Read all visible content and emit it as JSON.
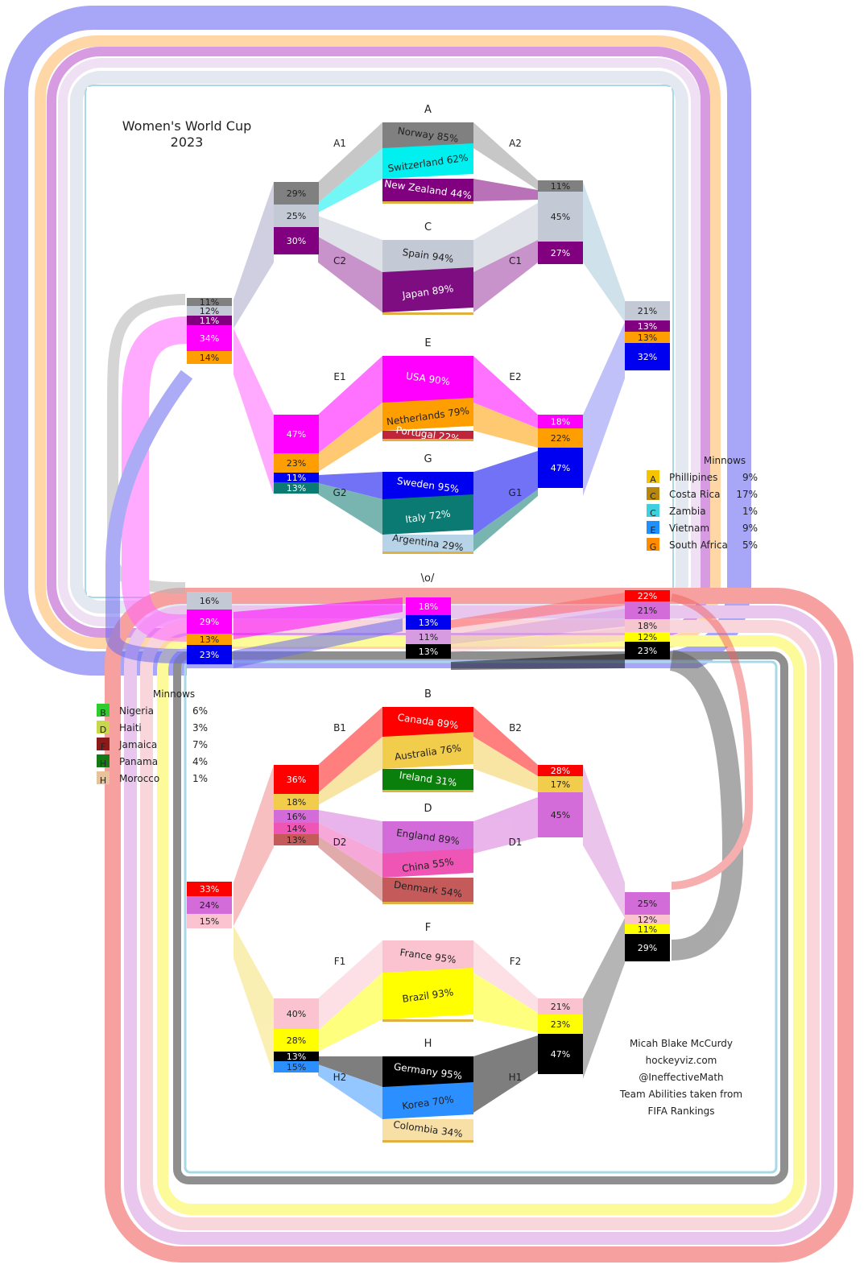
{
  "title_line1": "Women's World Cup",
  "title_line2": "2023",
  "center_label": "\\o/",
  "colors": {
    "ring_outer": "#a8a6f7",
    "ring_peach": "#ffd7a6",
    "ring_violet": "#d79be1",
    "ring_lilac": "#e9d2ef",
    "ring_pale": "#e4e8f0",
    "ring_line": "#a9d8e6",
    "ring_red": "#f7a0a0",
    "ring_pink": "#f6c6cf",
    "ring_yellow": "#fdfa9a",
    "ring_grey": "#8f8f8f"
  },
  "upper": {
    "groups": [
      {
        "key": "A",
        "label": "A",
        "side1": "A1",
        "side2": "A2",
        "teams": [
          {
            "name": "Norway 85%",
            "color": "#808080"
          },
          {
            "name": "Switzerland 62%",
            "color": "#00f0f0"
          },
          {
            "name": "New Zealand 44%",
            "color": "#80007f"
          }
        ]
      },
      {
        "key": "C",
        "label": "C",
        "side1": "C2",
        "side2": "C1",
        "teams": [
          {
            "name": "Spain 94%",
            "color": "#c4c9d6"
          },
          {
            "name": "Japan 89%",
            "color": "#7d0d80"
          }
        ]
      },
      {
        "key": "E",
        "label": "E",
        "side1": "E1",
        "side2": "E2",
        "teams": [
          {
            "name": "USA 90%",
            "color": "#ff00ff"
          },
          {
            "name": "Netherlands 79%",
            "color": "#ff9e00"
          },
          {
            "name": "Portugal 22%",
            "color": "#c0263a"
          }
        ]
      },
      {
        "key": "G",
        "label": "G",
        "side1": "G2",
        "side2": "G1",
        "teams": [
          {
            "name": "Sweden 95%",
            "color": "#0000f0"
          },
          {
            "name": "Italy 72%",
            "color": "#0a7a72"
          },
          {
            "name": "Argentina 29%",
            "color": "#b7d3e8"
          }
        ]
      }
    ],
    "stacks": {
      "a1": [
        "29%",
        "25%",
        "30%"
      ],
      "a2": [
        "11%",
        "45%",
        "27%"
      ],
      "e1": [
        "47%",
        "23%",
        "11%",
        "13%"
      ],
      "e2": [
        "18%",
        "22%",
        "47%"
      ],
      "left_quarter": [
        "11%",
        "12%",
        "11%",
        "34%",
        "14%"
      ],
      "right_quarter": [
        "21%",
        "13%",
        "13%",
        "32%"
      ],
      "semi": [
        "16%",
        "29%",
        "13%",
        "23%"
      ]
    }
  },
  "final": [
    "18%",
    "13%",
    "11%",
    "13%"
  ],
  "lower": {
    "groups": [
      {
        "key": "B",
        "label": "B",
        "side1": "B1",
        "side2": "B2",
        "teams": [
          {
            "name": "Canada 89%",
            "color": "#ff0000"
          },
          {
            "name": "Australia 76%",
            "color": "#f2cc4b"
          },
          {
            "name": "Ireland 31%",
            "color": "#0b7f0b"
          }
        ]
      },
      {
        "key": "D",
        "label": "D",
        "side1": "D2",
        "side2": "D1",
        "teams": [
          {
            "name": "England 89%",
            "color": "#d36bd8"
          },
          {
            "name": "China 55%",
            "color": "#ef55b4"
          },
          {
            "name": "Denmark 54%",
            "color": "#c45a5a"
          }
        ]
      },
      {
        "key": "F",
        "label": "F",
        "side1": "F1",
        "side2": "F2",
        "teams": [
          {
            "name": "France 95%",
            "color": "#fac3cf"
          },
          {
            "name": "Brazil 93%",
            "color": "#ffff00"
          }
        ]
      },
      {
        "key": "H",
        "label": "H",
        "side1": "H2",
        "side2": "H1",
        "teams": [
          {
            "name": "Germany 95%",
            "color": "#000000"
          },
          {
            "name": "Korea 70%",
            "color": "#2b8fff"
          },
          {
            "name": "Colombia 34%",
            "color": "#f8dfa6"
          }
        ]
      }
    ],
    "stacks": {
      "b1": [
        "36%",
        "18%",
        "16%",
        "14%",
        "13%"
      ],
      "b2": [
        "28%",
        "17%",
        "45%"
      ],
      "f1": [
        "40%",
        "28%",
        "13%",
        "15%"
      ],
      "f2": [
        "21%",
        "23%",
        "47%"
      ],
      "left_quarter": [
        "33%",
        "24%",
        "15%"
      ],
      "right_quarter": [
        "25%",
        "12%",
        "11%",
        "29%"
      ],
      "semi": [
        "22%",
        "21%",
        "18%",
        "12%",
        "23%"
      ]
    }
  },
  "minnows_top": {
    "title": "Minnows",
    "rows": [
      {
        "code": "A",
        "name": "Phillipines",
        "pct": "9%",
        "color": "#f5c400"
      },
      {
        "code": "C",
        "name": "Costa Rica",
        "pct": "17%",
        "color": "#b8860b"
      },
      {
        "code": "C",
        "name": "Zambia",
        "pct": "1%",
        "color": "#3fd0e0"
      },
      {
        "code": "E",
        "name": "Vietnam",
        "pct": "9%",
        "color": "#1e90ff"
      },
      {
        "code": "G",
        "name": "South Africa",
        "pct": "5%",
        "color": "#ff8c00"
      }
    ]
  },
  "minnows_bottom": {
    "title": "Minnows",
    "rows": [
      {
        "code": "B",
        "name": "Nigeria",
        "pct": "6%",
        "color": "#2ecc2e"
      },
      {
        "code": "D",
        "name": "Haiti",
        "pct": "3%",
        "color": "#c8d84a"
      },
      {
        "code": "F",
        "name": "Jamaica",
        "pct": "7%",
        "color": "#8b1a1a"
      },
      {
        "code": "H",
        "name": "Panama",
        "pct": "4%",
        "color": "#157a15"
      },
      {
        "code": "H",
        "name": "Morocco",
        "pct": "1%",
        "color": "#e6c39a"
      }
    ]
  },
  "credits": [
    "Micah Blake McCurdy",
    "hockeyviz.com",
    "@IneffectiveMath",
    "Team Abilities taken from",
    "FIFA Rankings"
  ]
}
